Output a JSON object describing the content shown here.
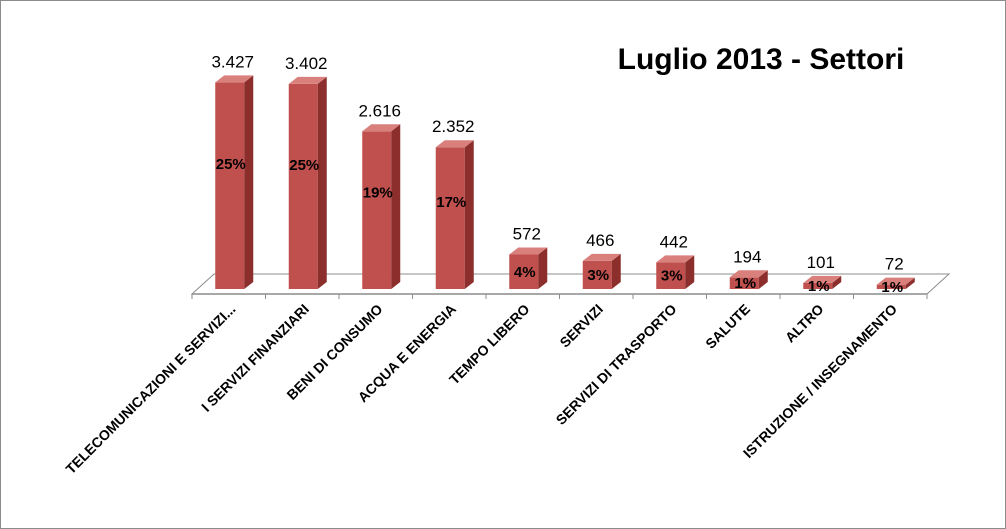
{
  "chart_data": {
    "type": "bar",
    "title": "Luglio 2013 - Settori",
    "categories": [
      "TELECOMUNICAZIONI E SERVIZI...",
      "I SERVIZI FINANZIARI",
      "BENI DI CONSUMO",
      "ACQUA E ENERGIA",
      "TEMPO LIBERO",
      "SERVIZI",
      "SERVIZI DI TRASPORTO",
      "SALUTE",
      "ALTRO",
      "ISTRUZIONE / INSEGNAMENTO"
    ],
    "values": [
      3427,
      3402,
      2616,
      2352,
      572,
      466,
      442,
      194,
      101,
      72
    ],
    "value_labels": [
      "3.427",
      "3.402",
      "2.616",
      "2.352",
      "572",
      "466",
      "442",
      "194",
      "101",
      "72"
    ],
    "percent_labels": [
      "25%",
      "25%",
      "19%",
      "17%",
      "4%",
      "3%",
      "3%",
      "1%",
      "1%",
      "1%"
    ],
    "ylim": [
      0,
      3500
    ],
    "grid": false,
    "legend": "none",
    "colors": {
      "bar_front": "#c0504d",
      "bar_side": "#8c2f2c",
      "bar_top": "#d9807d",
      "floor": "#ffffff",
      "axis": "#8c8c8c"
    }
  }
}
